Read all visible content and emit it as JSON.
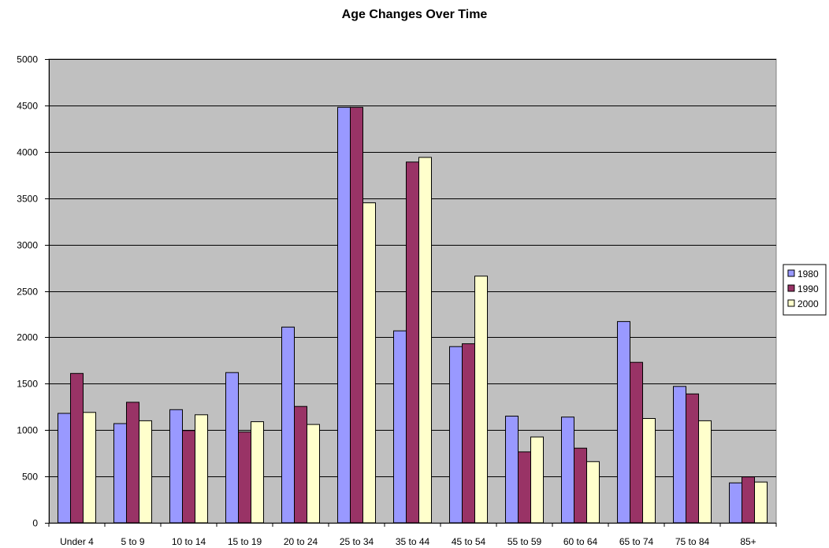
{
  "chart_data": {
    "type": "bar",
    "title": "Age Changes Over Time",
    "xlabel": "",
    "ylabel": "",
    "ylim": [
      0,
      5000
    ],
    "yticks": [
      0,
      500,
      1000,
      1500,
      2000,
      2500,
      3000,
      3500,
      4000,
      4500,
      5000
    ],
    "grid": true,
    "legend_position": "right",
    "plot_background": "#C0C0C0",
    "categories": [
      "Under 4",
      "5 to 9",
      "10 to 14",
      "15 to 19",
      "20 to 24",
      "25 to 34",
      "35 to 44",
      "45 to 54",
      "55 to 59",
      "60 to 64",
      "65 to 74",
      "75 to 84",
      "85+"
    ],
    "series": [
      {
        "name": "1980",
        "color": "#9999FF",
        "values": [
          1180,
          1070,
          1220,
          1620,
          2110,
          4480,
          2070,
          1900,
          1150,
          1140,
          2170,
          1470,
          430
        ]
      },
      {
        "name": "1990",
        "color": "#993366",
        "values": [
          1610,
          1300,
          995,
          980,
          1255,
          4480,
          3890,
          1930,
          765,
          805,
          1730,
          1390,
          495
        ]
      },
      {
        "name": "2000",
        "color": "#FFFFCC",
        "values": [
          1190,
          1100,
          1165,
          1090,
          1060,
          3450,
          3940,
          2660,
          925,
          660,
          1125,
          1100,
          440
        ]
      }
    ]
  }
}
